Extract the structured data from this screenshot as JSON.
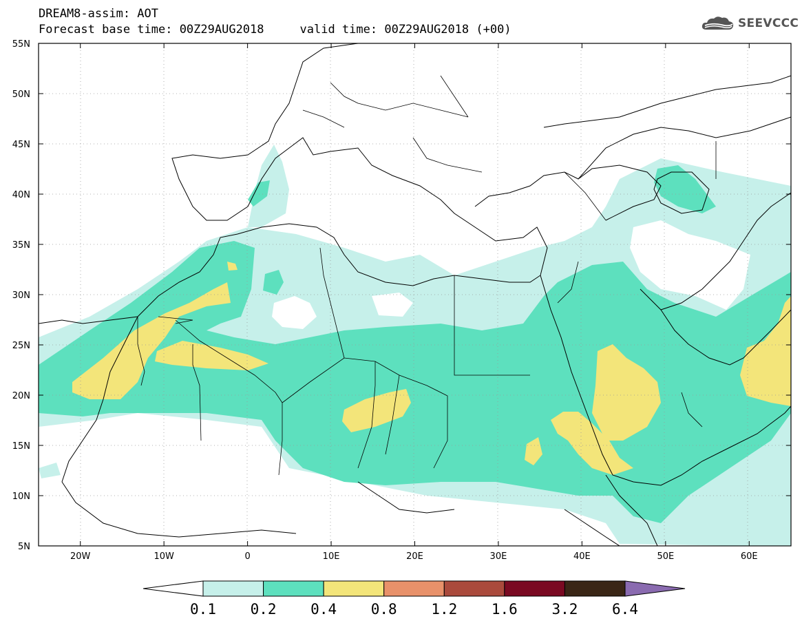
{
  "title": {
    "line1": "DREAM8-assim: AOT",
    "base_time": "Forecast base time: 00Z29AUG2018",
    "valid_time": "valid time: 00Z29AUG2018 (+00)"
  },
  "logo": {
    "text": "SEEVCCC",
    "icon": "cloud-icon",
    "color": "#555555"
  },
  "map": {
    "variable": "AOT",
    "lon_range": [
      -25,
      65
    ],
    "lat_range": [
      5,
      55
    ],
    "grid": "dotted",
    "lon_ticks": [
      {
        "v": -20,
        "label": "20W"
      },
      {
        "v": -10,
        "label": "10W"
      },
      {
        "v": 0,
        "label": "0"
      },
      {
        "v": 10,
        "label": "10E"
      },
      {
        "v": 20,
        "label": "20E"
      },
      {
        "v": 30,
        "label": "30E"
      },
      {
        "v": 40,
        "label": "40E"
      },
      {
        "v": 50,
        "label": "50E"
      },
      {
        "v": 60,
        "label": "60E"
      }
    ],
    "lat_ticks": [
      {
        "v": 55,
        "label": "55N"
      },
      {
        "v": 50,
        "label": "50N"
      },
      {
        "v": 45,
        "label": "45N"
      },
      {
        "v": 40,
        "label": "40N"
      },
      {
        "v": 35,
        "label": "35N"
      },
      {
        "v": 30,
        "label": "30N"
      },
      {
        "v": 25,
        "label": "25N"
      },
      {
        "v": 20,
        "label": "20N"
      },
      {
        "v": 15,
        "label": "15N"
      },
      {
        "v": 10,
        "label": "10N"
      },
      {
        "v": 5,
        "label": "5N"
      }
    ]
  },
  "colorbar": {
    "colors": [
      "#c6f0ea",
      "#5de0be",
      "#f3e57a",
      "#e8916a",
      "#aa4a3c",
      "#7a0a22",
      "#3a2616"
    ],
    "under_color": "#ffffff",
    "over_color": "#8a6bb0",
    "labels": [
      "0.1",
      "0.2",
      "0.4",
      "0.8",
      "1.2",
      "1.6",
      "3.2",
      "6.4"
    ]
  }
}
